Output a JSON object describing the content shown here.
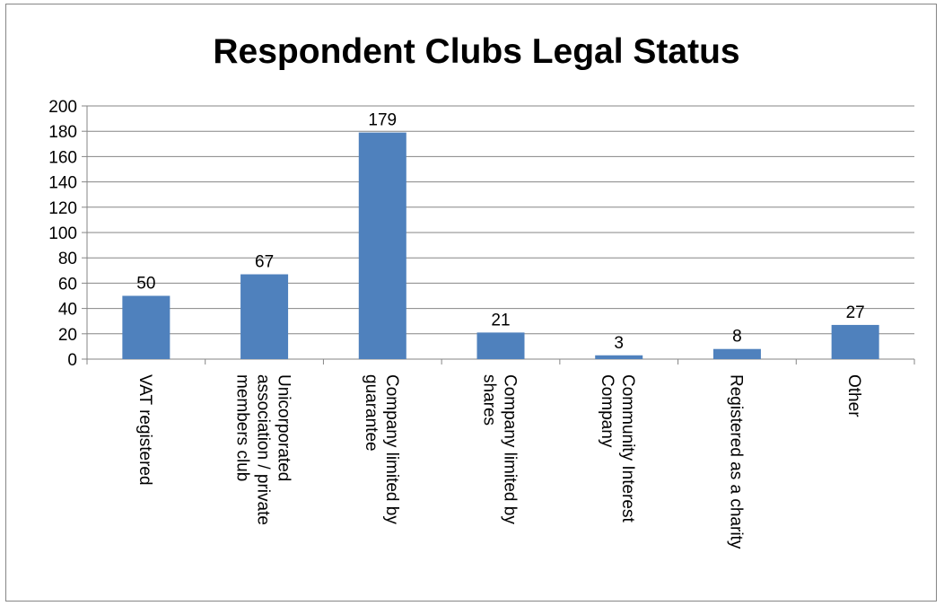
{
  "chart_data": {
    "type": "bar",
    "title": "Respondent Clubs Legal Status",
    "xlabel": "",
    "ylabel": "",
    "categories": [
      [
        "VAT registered"
      ],
      [
        "Unicorporated",
        "association / private",
        "members club"
      ],
      [
        "Company limited by",
        "guarantee"
      ],
      [
        "Company limited by",
        "shares"
      ],
      [
        "Community Interest",
        "Company"
      ],
      [
        "Registered as a charity"
      ],
      [
        "Other"
      ]
    ],
    "values": [
      50,
      67,
      179,
      21,
      3,
      8,
      27
    ],
    "ylim": [
      0,
      200
    ],
    "yticks": [
      0,
      20,
      40,
      60,
      80,
      100,
      120,
      140,
      160,
      180,
      200
    ],
    "grid": true,
    "legend": "none",
    "bar_color": "#4f81bd",
    "grid_color": "#868686"
  }
}
